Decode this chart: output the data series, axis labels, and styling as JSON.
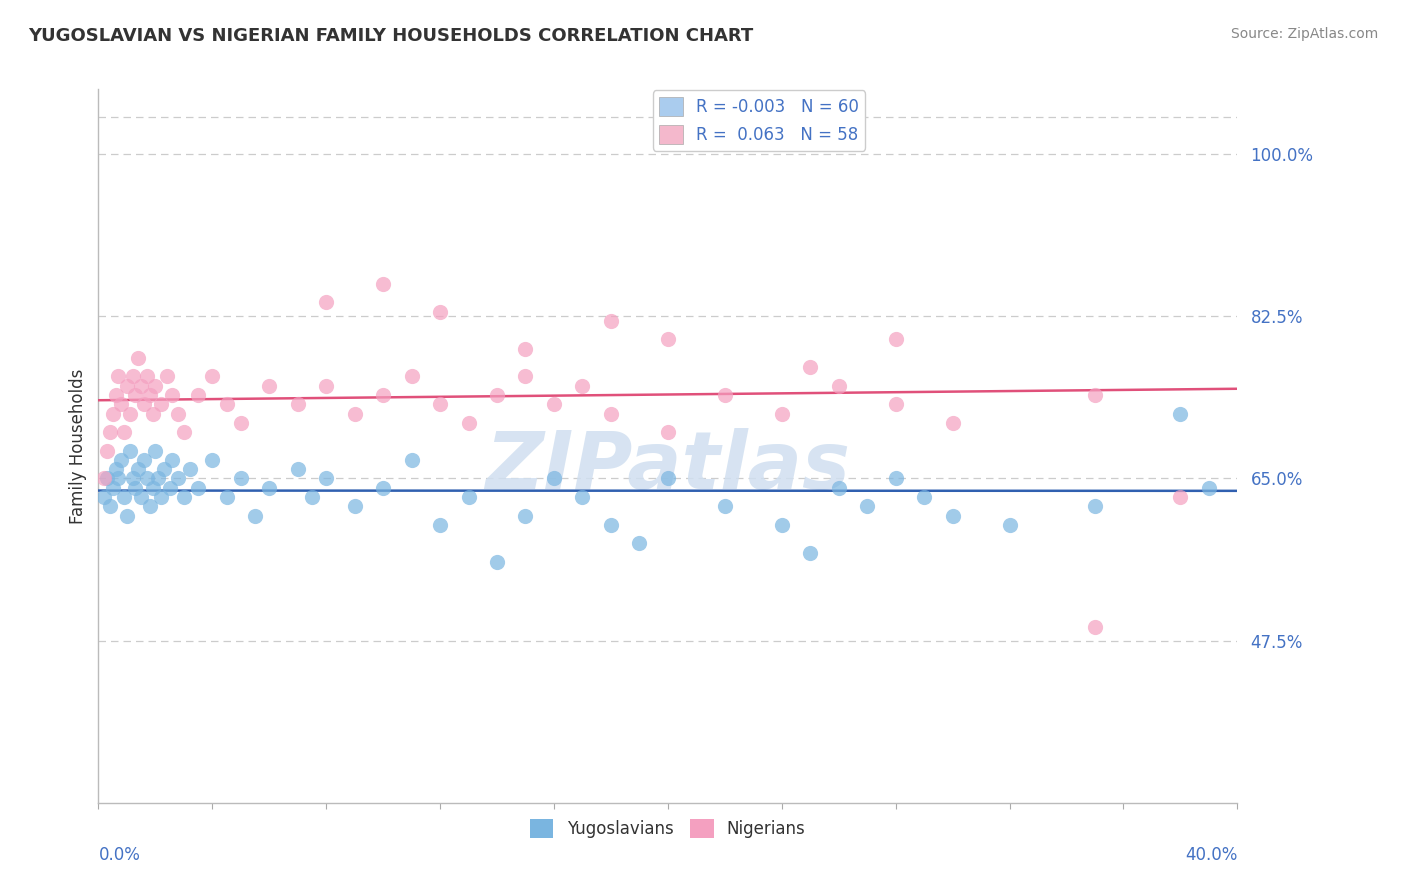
{
  "title": "YUGOSLAVIAN VS NIGERIAN FAMILY HOUSEHOLDS CORRELATION CHART",
  "source": "Source: ZipAtlas.com",
  "ylabel": "Family Households",
  "y_ticks": [
    47.5,
    65.0,
    82.5,
    100.0
  ],
  "y_tick_labels": [
    "47.5%",
    "65.0%",
    "82.5%",
    "100.0%"
  ],
  "x_min": 0.0,
  "x_max": 40.0,
  "y_min": 30.0,
  "y_max": 107.0,
  "blue_scatter_color": "#7ab5e0",
  "pink_scatter_color": "#f4a0c0",
  "blue_line_color": "#3060b0",
  "pink_line_color": "#e0507a",
  "watermark": "ZIPatlas",
  "watermark_color": "#d0dff0",
  "title_color": "#333333",
  "axis_label_color": "#4472c4",
  "background_color": "#ffffff",
  "grid_color": "#cccccc",
  "legend_yugo_color": "#aaccee",
  "legend_nig_color": "#f4b8cc",
  "R_yugo": "-0.003",
  "N_yugo": "60",
  "R_nig": "0.063",
  "N_nig": "58",
  "yugo_x": [
    0.2,
    0.3,
    0.4,
    0.5,
    0.6,
    0.7,
    0.8,
    0.9,
    1.0,
    1.1,
    1.2,
    1.3,
    1.4,
    1.5,
    1.6,
    1.7,
    1.8,
    1.9,
    2.0,
    2.1,
    2.2,
    2.3,
    2.5,
    2.6,
    2.8,
    3.0,
    3.2,
    3.5,
    4.0,
    4.5,
    5.0,
    5.5,
    6.0,
    7.0,
    7.5,
    8.0,
    9.0,
    10.0,
    11.0,
    12.0,
    13.0,
    14.0,
    15.0,
    16.0,
    17.0,
    18.0,
    19.0,
    20.0,
    22.0,
    24.0,
    25.0,
    26.0,
    27.0,
    28.0,
    29.0,
    30.0,
    32.0,
    35.0,
    38.0,
    39.0
  ],
  "yugo_y": [
    63,
    65,
    62,
    64,
    66,
    65,
    67,
    63,
    61,
    68,
    65,
    64,
    66,
    63,
    67,
    65,
    62,
    64,
    68,
    65,
    63,
    66,
    64,
    67,
    65,
    63,
    66,
    64,
    67,
    63,
    65,
    61,
    64,
    66,
    63,
    65,
    62,
    64,
    67,
    60,
    63,
    56,
    61,
    65,
    63,
    60,
    58,
    65,
    62,
    60,
    57,
    64,
    62,
    65,
    63,
    61,
    60,
    62,
    72,
    64
  ],
  "nig_x": [
    0.2,
    0.3,
    0.4,
    0.5,
    0.6,
    0.7,
    0.8,
    0.9,
    1.0,
    1.1,
    1.2,
    1.3,
    1.4,
    1.5,
    1.6,
    1.7,
    1.8,
    1.9,
    2.0,
    2.2,
    2.4,
    2.6,
    2.8,
    3.0,
    3.5,
    4.0,
    4.5,
    5.0,
    6.0,
    7.0,
    8.0,
    9.0,
    10.0,
    11.0,
    12.0,
    13.0,
    14.0,
    15.0,
    16.0,
    17.0,
    18.0,
    20.0,
    22.0,
    24.0,
    26.0,
    28.0,
    30.0,
    35.0,
    38.0,
    8.0,
    10.0,
    12.0,
    15.0,
    18.0,
    20.0,
    25.0,
    28.0,
    35.0
  ],
  "nig_y": [
    65,
    68,
    70,
    72,
    74,
    76,
    73,
    70,
    75,
    72,
    76,
    74,
    78,
    75,
    73,
    76,
    74,
    72,
    75,
    73,
    76,
    74,
    72,
    70,
    74,
    76,
    73,
    71,
    75,
    73,
    75,
    72,
    74,
    76,
    73,
    71,
    74,
    76,
    73,
    75,
    72,
    70,
    74,
    72,
    75,
    73,
    71,
    74,
    63,
    84,
    86,
    83,
    79,
    82,
    80,
    77,
    80,
    49
  ]
}
